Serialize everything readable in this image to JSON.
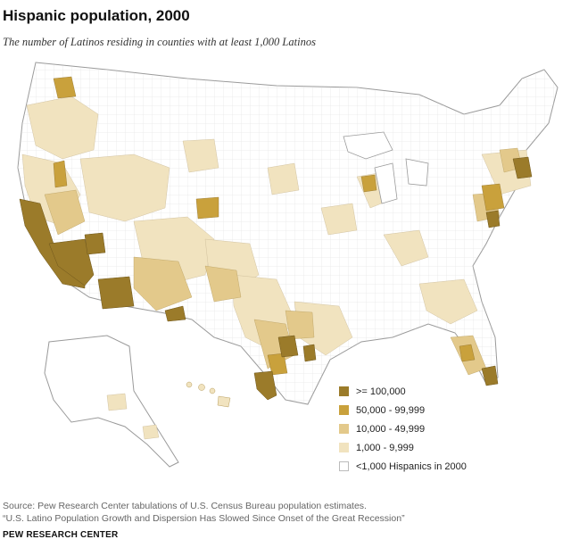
{
  "title": "Hispanic population, 2000",
  "subtitle": "The number of Latinos residing in counties with at least 1,000 Latinos",
  "legend": [
    {
      "label": ">= 100,000",
      "color": "#9b7b2a"
    },
    {
      "label": "50,000 - 99,999",
      "color": "#c9a13c"
    },
    {
      "label": "10,000 - 49,999",
      "color": "#e3c98b"
    },
    {
      "label": "1,000 - 9,999",
      "color": "#f1e3bf"
    },
    {
      "label": "<1,000 Hispanics in 2000",
      "color": "#ffffff"
    }
  ],
  "map": {
    "border_color": "#b9b9b9",
    "background_fill": "#ffffff"
  },
  "source": {
    "line1": "Source: Pew Research Center tabulations of U.S. Census Bureau population estimates.",
    "line2": "“U.S. Latino Population Growth and Dispersion Has Slowed Since Onset of the Great Recession”"
  },
  "footer": "PEW RESEARCH CENTER"
}
